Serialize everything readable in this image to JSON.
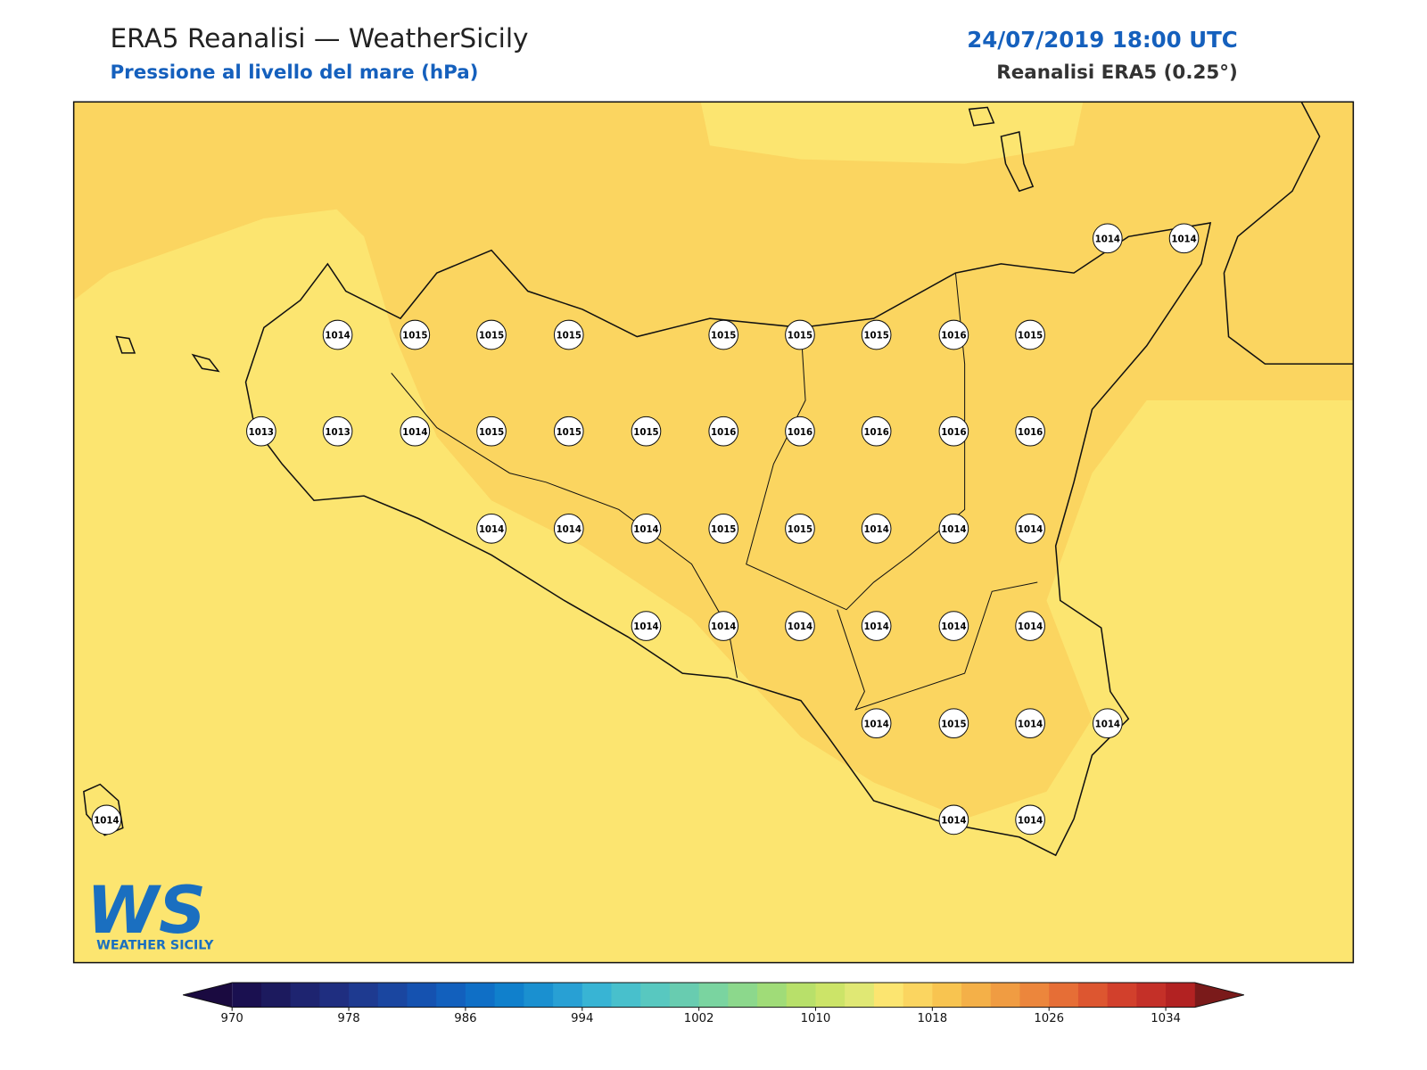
{
  "header": {
    "title": "ERA5 Reanalisi — WeatherSicily",
    "subtitle": "Pressione al livello del mare (hPa)",
    "datetime": "24/07/2019 18:00 UTC",
    "source": "Reanalisi ERA5 (0.25°)"
  },
  "stations": [
    1014,
    1014,
    1014,
    1015,
    1015,
    1015,
    1015,
    1015,
    1015,
    1016,
    1015,
    1013,
    1013,
    1014,
    1015,
    1015,
    1015,
    1016,
    1016,
    1016,
    1016,
    1016,
    1014,
    1014,
    1014,
    1015,
    1015,
    1014,
    1014,
    1014,
    1014,
    1014,
    1014,
    1014,
    1014,
    1014,
    1014,
    1015,
    1014,
    1014,
    1014,
    1014,
    1014
  ],
  "colorbar": {
    "xlim": [
      970,
      1036
    ],
    "xticks": [
      970,
      978,
      986,
      994,
      1002,
      1010,
      1018,
      1026,
      1034
    ],
    "colors": [
      "#1a1050",
      "#1c1a5e",
      "#1e2470",
      "#1f2e80",
      "#1e3a90",
      "#1a46a0",
      "#1552b0",
      "#1260bd",
      "#0f6fc6",
      "#1080cc",
      "#1a90d0",
      "#28a0d4",
      "#38b4d4",
      "#48c0cc",
      "#58c8c0",
      "#68ccb0",
      "#7ad4a0",
      "#8cd88c",
      "#a0dc78",
      "#b8e06a",
      "#cce468",
      "#e0e874",
      "#fce570",
      "#fbd560",
      "#f8c450",
      "#f4b048",
      "#f09c42",
      "#ec863c",
      "#e66e36",
      "#dd5630",
      "#d2402c",
      "#c43028",
      "#b22222"
    ],
    "under": "#1a0a40",
    "over": "#7a1a1a"
  },
  "logo": {
    "mark": "WS",
    "name": "WEATHER SICILY"
  }
}
